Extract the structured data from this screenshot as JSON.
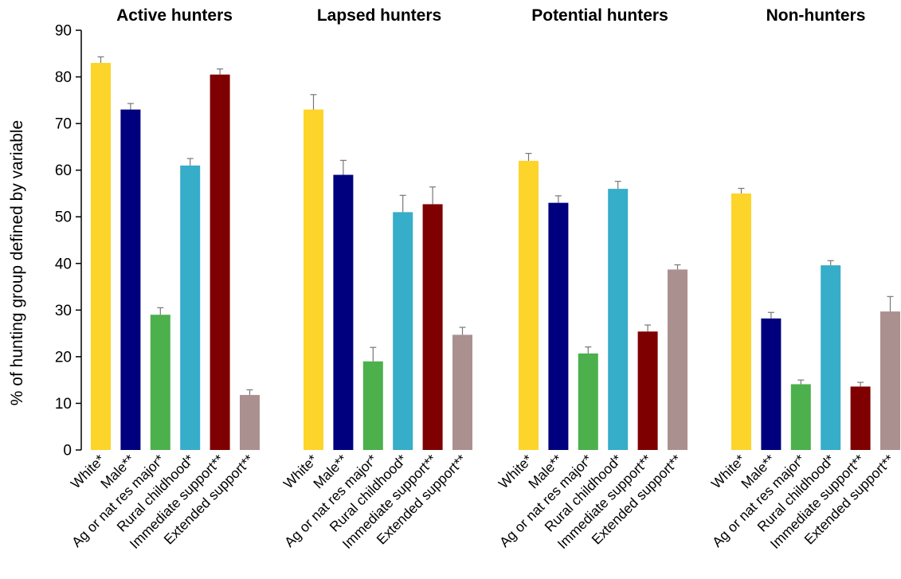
{
  "chart_data": {
    "type": "bar",
    "ylabel": "% of hunting group defined by variable",
    "xlabel": "",
    "ylim": [
      0,
      90
    ],
    "yticks": [
      0,
      10,
      20,
      30,
      40,
      50,
      60,
      70,
      80,
      90
    ],
    "grid": false,
    "error_bars": true,
    "categories": [
      "White*",
      "Male**",
      "Ag or nat res major*",
      "Rural childhood*",
      "Immediate support**",
      "Extended support**"
    ],
    "colors": [
      "#FDD42A",
      "#00007F",
      "#4CB04C",
      "#36ADC9",
      "#7F0000",
      "#AB9090"
    ],
    "panels": [
      {
        "title": "Active hunters",
        "values": [
          83,
          73,
          29,
          61,
          80.5,
          11.8
        ],
        "errors": [
          1.3,
          1.3,
          1.5,
          1.5,
          1.2,
          1.1
        ]
      },
      {
        "title": "Lapsed hunters",
        "values": [
          73,
          59,
          19,
          51,
          52.7,
          24.7
        ],
        "errors": [
          3.2,
          3.1,
          3.0,
          3.6,
          3.7,
          1.6
        ]
      },
      {
        "title": "Potential hunters",
        "values": [
          62,
          53,
          20.7,
          56,
          25.4,
          38.7
        ],
        "errors": [
          1.6,
          1.5,
          1.4,
          1.6,
          1.4,
          1.0
        ]
      },
      {
        "title": "Non-hunters",
        "values": [
          55,
          28.2,
          14.1,
          39.6,
          13.6,
          29.7
        ],
        "errors": [
          1.1,
          1.3,
          0.9,
          1.0,
          0.9,
          3.2
        ]
      }
    ]
  }
}
